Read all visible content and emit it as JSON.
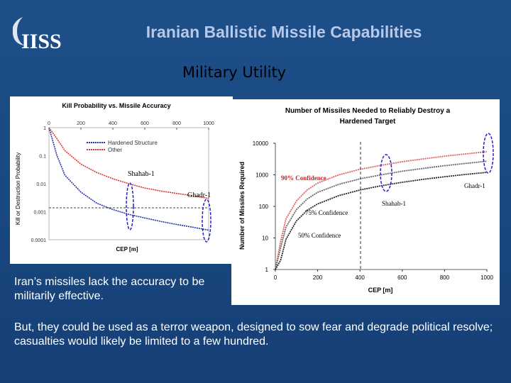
{
  "header": {
    "logo_text": "IISS",
    "title": "Iranian Ballistic Missile Capabilities",
    "subtitle": "Military Utility"
  },
  "colors": {
    "background": "#1a4a84",
    "title": "#b7c8e8",
    "hardened_series": "#2233aa",
    "other_series": "#dd3333"
  },
  "chart_left": {
    "title": "Kill Probability vs. Missile Accuracy",
    "xlabel": "CEP [m]",
    "ylabel": "Kill or Destruction Probability",
    "x_ticks": [
      "0",
      "200",
      "400",
      "600",
      "800",
      "1000"
    ],
    "y_ticks": [
      "1",
      "0.1",
      "0.01",
      "0.001",
      "0.0001"
    ],
    "legend": [
      "Hardened Structure",
      "Other"
    ],
    "annotations": {
      "shahab": "Shahab-1",
      "ghadr": "Ghadr-1"
    }
  },
  "chart_right": {
    "title_line1": "Number of Missiles Needed to Reliably Destroy a",
    "title_line2": "Hardened Target",
    "xlabel": "CEP [m]",
    "ylabel": "Number of Missiles Required",
    "x_ticks": [
      "0",
      "200",
      "400",
      "600",
      "800",
      "1000"
    ],
    "y_ticks": [
      "10000",
      "1000",
      "100",
      "10",
      "1"
    ],
    "annotations": {
      "c90": "90% Confidence",
      "c75": "75% Confidence",
      "c50": "50% Confidence",
      "ghadr": "Ghadr-1",
      "shahab": "Shahab-1"
    }
  },
  "text": {
    "para1": "Iran’s missiles lack the accuracy to be militarily effective.",
    "para2": "But, they could be used as a terror weapon, designed to sow fear and degrade political resolve; casualties would likely be limited to a few hundred."
  },
  "chart_data": [
    {
      "type": "line",
      "title": "Kill Probability vs. Missile Accuracy",
      "xlabel": "CEP [m]",
      "ylabel": "Kill or Destruction Probability",
      "xlim": [
        0,
        1000
      ],
      "ylim": [
        0.0001,
        1
      ],
      "yscale": "log",
      "x": [
        0,
        50,
        100,
        200,
        300,
        400,
        500,
        600,
        700,
        800,
        900,
        1000
      ],
      "series": [
        {
          "name": "Hardened Structure",
          "values": [
            1,
            0.1,
            0.02,
            0.005,
            0.002,
            0.0012,
            0.0008,
            0.0006,
            0.00045,
            0.00035,
            0.00028,
            0.00022
          ]
        },
        {
          "name": "Other",
          "values": [
            1,
            0.4,
            0.15,
            0.05,
            0.025,
            0.015,
            0.01,
            0.007,
            0.0055,
            0.0045,
            0.0037,
            0.003
          ]
        }
      ]
    },
    {
      "type": "line",
      "title": "Number of Missiles Needed to Reliably Destroy a Hardened Target",
      "xlabel": "CEP [m]",
      "ylabel": "Number of Missiles Required",
      "xlim": [
        0,
        1000
      ],
      "ylim": [
        1,
        10000
      ],
      "yscale": "log",
      "x": [
        0,
        25,
        50,
        100,
        150,
        200,
        300,
        400,
        500,
        600,
        700,
        800,
        900,
        1000
      ],
      "series": [
        {
          "name": "90% Confidence",
          "values": [
            1,
            8,
            40,
            150,
            330,
            550,
            1000,
            1500,
            2000,
            2600,
            3200,
            3900,
            4600,
            5400
          ]
        },
        {
          "name": "75% Confidence",
          "values": [
            1,
            5,
            22,
            80,
            170,
            280,
            500,
            750,
            1000,
            1300,
            1600,
            1950,
            2300,
            2700
          ]
        },
        {
          "name": "50% Confidence",
          "values": [
            1,
            2,
            9,
            35,
            75,
            120,
            220,
            330,
            450,
            580,
            720,
            870,
            1030,
            1200
          ]
        }
      ]
    }
  ]
}
